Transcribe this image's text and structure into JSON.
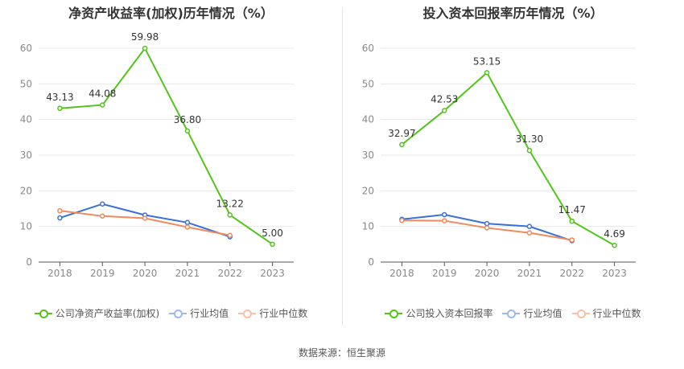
{
  "chart_data": [
    {
      "type": "line",
      "title": "净资产收益率(加权)历年情况（%）",
      "categories": [
        "2018",
        "2019",
        "2020",
        "2021",
        "2022",
        "2023"
      ],
      "ylim": [
        0,
        60
      ],
      "yticks": [
        0,
        10,
        20,
        30,
        40,
        50,
        60
      ],
      "grid": true,
      "legend_position": "bottom",
      "series": [
        {
          "name": "公司净资产收益率(加权)",
          "color": "#52c41a",
          "values": [
            43.13,
            44.08,
            59.98,
            36.8,
            13.22,
            5.0
          ],
          "labels": [
            "43.13",
            "44.08",
            "59.98",
            "36.80",
            "13.22",
            "5.00"
          ]
        },
        {
          "name": "行业均值",
          "color": "#3a6fd8",
          "values": [
            12.4,
            16.3,
            13.2,
            11.1,
            7.1,
            null
          ]
        },
        {
          "name": "行业中位数",
          "color": "#f08a5d",
          "values": [
            14.4,
            12.9,
            12.3,
            9.8,
            7.5,
            null
          ]
        }
      ]
    },
    {
      "type": "line",
      "title": "投入资本回报率历年情况（%）",
      "categories": [
        "2018",
        "2019",
        "2020",
        "2021",
        "2022",
        "2023"
      ],
      "ylim": [
        0,
        60
      ],
      "yticks": [
        0,
        10,
        20,
        30,
        40,
        50,
        60
      ],
      "grid": true,
      "legend_position": "bottom",
      "series": [
        {
          "name": "公司投入资本回报率",
          "color": "#52c41a",
          "values": [
            32.97,
            42.53,
            53.15,
            31.3,
            11.47,
            4.69
          ],
          "labels": [
            "32.97",
            "42.53",
            "53.15",
            "31.30",
            "11.47",
            "4.69"
          ]
        },
        {
          "name": "行业均值",
          "color": "#3a6fd8",
          "values": [
            12.0,
            13.3,
            10.8,
            10.0,
            6.0,
            null
          ]
        },
        {
          "name": "行业中位数",
          "color": "#f08a5d",
          "values": [
            11.7,
            11.6,
            9.6,
            8.2,
            6.2,
            null
          ]
        }
      ]
    }
  ],
  "source_text": "数据来源：恒生聚源"
}
